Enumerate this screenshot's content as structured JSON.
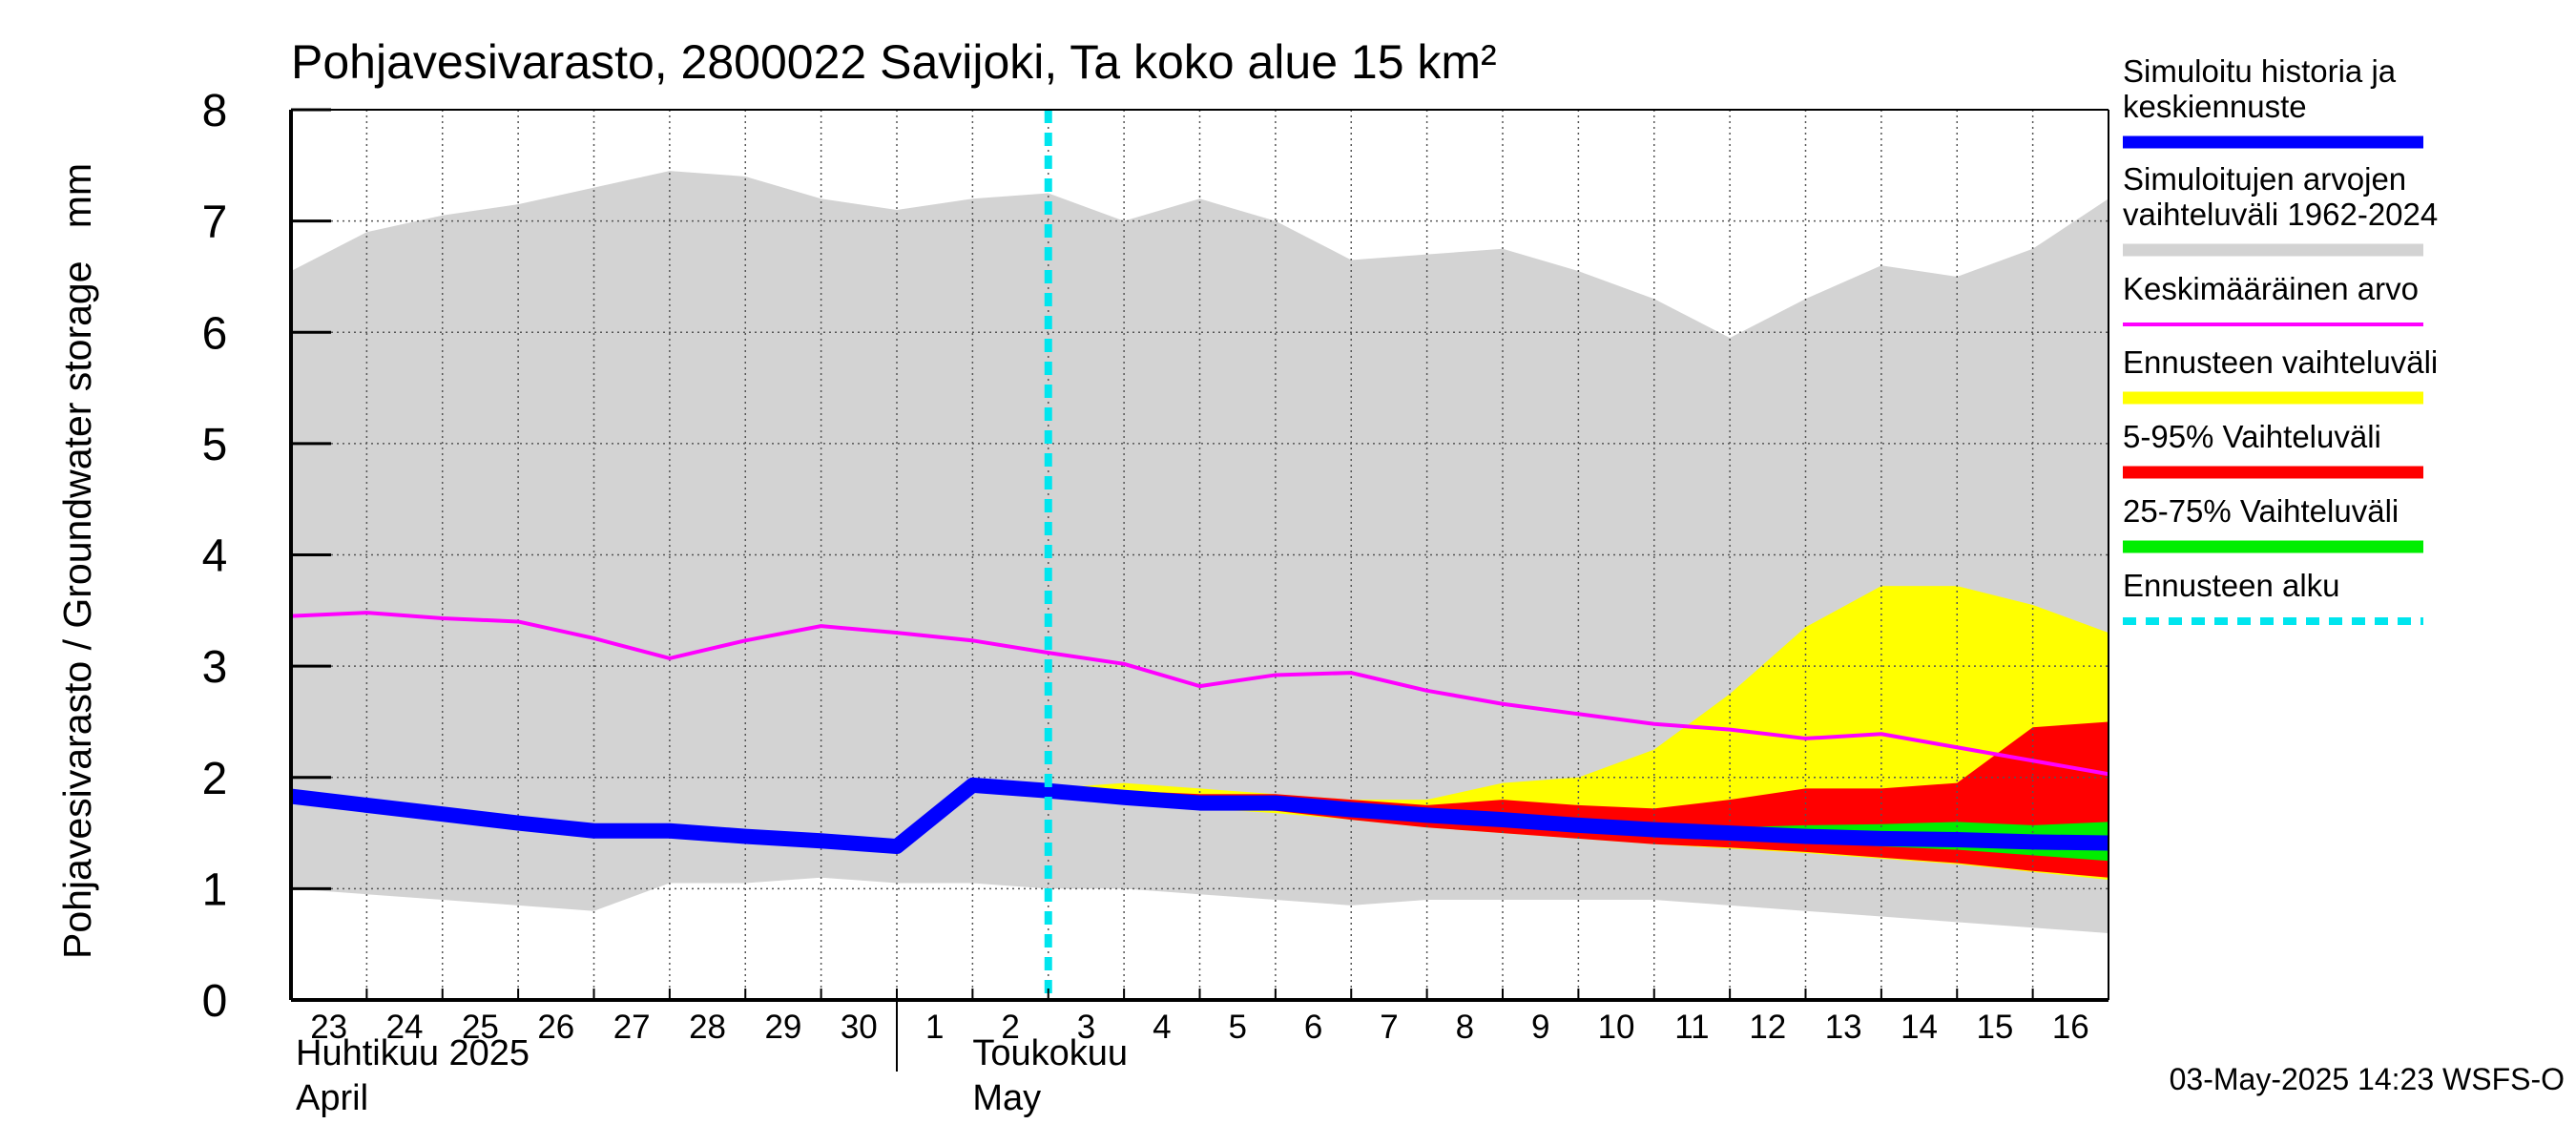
{
  "chart_data": {
    "type": "area",
    "title": "Pohjavesivarasto, 2800022 Savijoki, Ta koko alue 15 km²",
    "ylabel": "Pohjavesivarasto / Groundwater storage   mm",
    "ylim": [
      0,
      8
    ],
    "yticks": [
      "0",
      "1",
      "2",
      "3",
      "4",
      "5",
      "6",
      "7",
      "8"
    ],
    "x": [
      "2025-04-23",
      "2025-04-24",
      "2025-04-25",
      "2025-04-26",
      "2025-04-27",
      "2025-04-28",
      "2025-04-29",
      "2025-04-30",
      "2025-05-01",
      "2025-05-02",
      "2025-05-03",
      "2025-05-04",
      "2025-05-05",
      "2025-05-06",
      "2025-05-07",
      "2025-05-08",
      "2025-05-09",
      "2025-05-10",
      "2025-05-11",
      "2025-05-12",
      "2025-05-13",
      "2025-05-14",
      "2025-05-15",
      "2025-05-16",
      "2025-05-17"
    ],
    "xtick_labels": [
      "23",
      "24",
      "25",
      "26",
      "27",
      "28",
      "29",
      "30",
      "1",
      "2",
      "3",
      "4",
      "5",
      "6",
      "7",
      "8",
      "9",
      "10",
      "11",
      "12",
      "13",
      "14",
      "15",
      "16"
    ],
    "month_labels": [
      {
        "fi": "Huhtikuu  2025",
        "en": "April"
      },
      {
        "fi": "Toukokuu",
        "en": "May"
      }
    ],
    "forecast_start": "2025-05-03",
    "grid": true,
    "legend_position": "right",
    "series": [
      {
        "name": "Simuloitujen arvojen vaihteluväli 1962-2024",
        "kind": "band",
        "color": "#d3d3d3",
        "upper": [
          6.55,
          6.9,
          7.05,
          7.15,
          7.3,
          7.45,
          7.4,
          7.2,
          7.1,
          7.2,
          7.25,
          7.0,
          7.2,
          7.0,
          6.65,
          6.7,
          6.75,
          6.55,
          6.3,
          5.95,
          6.3,
          6.6,
          6.5,
          6.75,
          7.2
        ],
        "lower": [
          1.0,
          0.95,
          0.9,
          0.85,
          0.8,
          1.05,
          1.05,
          1.1,
          1.05,
          1.05,
          1.0,
          1.0,
          0.95,
          0.9,
          0.85,
          0.9,
          0.9,
          0.9,
          0.9,
          0.85,
          0.8,
          0.75,
          0.7,
          0.65,
          0.6
        ]
      },
      {
        "name": "Ennusteen vaihteluväli",
        "kind": "band",
        "color": "#ffff00",
        "x_start": "2025-05-03",
        "upper": [
          1.9,
          1.95,
          1.9,
          1.85,
          1.8,
          1.8,
          1.95,
          2.0,
          2.25,
          2.75,
          3.35,
          3.72,
          3.72,
          3.55,
          3.3
        ],
        "lower": [
          1.9,
          1.85,
          1.72,
          1.68,
          1.62,
          1.55,
          1.5,
          1.45,
          1.4,
          1.36,
          1.32,
          1.27,
          1.22,
          1.15,
          1.08
        ]
      },
      {
        "name": "5-95% Vaihteluväli",
        "kind": "band",
        "color": "#ff0000",
        "x_start": "2025-05-03",
        "upper": [
          1.9,
          1.88,
          1.85,
          1.85,
          1.8,
          1.75,
          1.8,
          1.75,
          1.72,
          1.8,
          1.9,
          1.9,
          1.95,
          2.45,
          2.5
        ],
        "lower": [
          1.9,
          1.85,
          1.75,
          1.7,
          1.62,
          1.55,
          1.5,
          1.45,
          1.4,
          1.37,
          1.33,
          1.28,
          1.23,
          1.16,
          1.1
        ]
      },
      {
        "name": "25-75% Vaihteluväli",
        "kind": "band",
        "color": "#00ee00",
        "x_start": "2025-05-03",
        "upper": [
          1.9,
          1.85,
          1.8,
          1.8,
          1.72,
          1.68,
          1.65,
          1.6,
          1.57,
          1.55,
          1.57,
          1.58,
          1.6,
          1.57,
          1.6
        ],
        "lower": [
          1.9,
          1.85,
          1.78,
          1.76,
          1.7,
          1.64,
          1.58,
          1.52,
          1.47,
          1.44,
          1.42,
          1.38,
          1.35,
          1.3,
          1.25
        ]
      },
      {
        "name": "Keskimääräinen arvo",
        "kind": "line",
        "color": "#ff00ff",
        "values": [
          3.45,
          3.48,
          3.43,
          3.4,
          3.25,
          3.07,
          3.23,
          3.36,
          3.3,
          3.23,
          3.12,
          3.02,
          2.82,
          2.92,
          2.94,
          2.78,
          2.66,
          2.57,
          2.48,
          2.43,
          2.35,
          2.39,
          2.27,
          2.15,
          2.03
        ]
      },
      {
        "name": "Simuloitu historia ja keskiennuste",
        "kind": "line",
        "color": "#0000ff",
        "values": [
          1.83,
          1.75,
          1.67,
          1.59,
          1.52,
          1.52,
          1.47,
          1.43,
          1.38,
          1.93,
          1.88,
          1.82,
          1.77,
          1.77,
          1.71,
          1.66,
          1.62,
          1.57,
          1.53,
          1.5,
          1.47,
          1.45,
          1.44,
          1.42,
          1.41
        ]
      },
      {
        "name": "Ennusteen alku",
        "kind": "vline",
        "color": "#00e5ee",
        "x": "2025-05-03"
      }
    ],
    "legend": [
      {
        "label": "Simuloitu historia ja\nkeskiennuste",
        "color": "#0000ff",
        "style": "thick"
      },
      {
        "label": "Simuloitujen arvojen\nvaihteluväli 1962-2024",
        "color": "#d3d3d3",
        "style": "thick"
      },
      {
        "label": "Keskimääräinen arvo",
        "color": "#ff00ff",
        "style": "thin"
      },
      {
        "label": "Ennusteen vaihteluväli",
        "color": "#ffff00",
        "style": "thick"
      },
      {
        "label": "5-95% Vaihteluväli",
        "color": "#ff0000",
        "style": "thick"
      },
      {
        "label": "25-75% Vaihteluväli",
        "color": "#00ee00",
        "style": "thick"
      },
      {
        "label": "Ennusteen alku",
        "color": "#00e5ee",
        "style": "dashed"
      }
    ]
  },
  "footer": {
    "timestamp": "03-May-2025 14:23 WSFS-O"
  }
}
